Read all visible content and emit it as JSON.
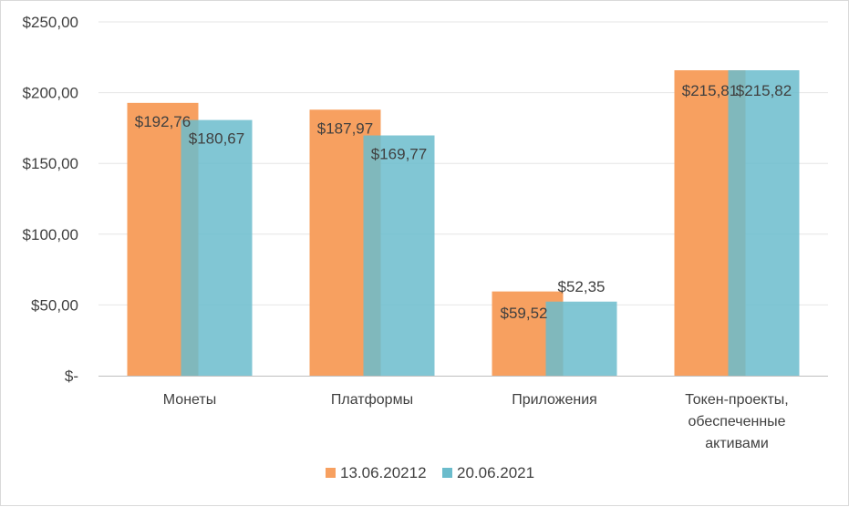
{
  "chart_data": {
    "type": "bar",
    "categories": [
      [
        "Монеты"
      ],
      [
        "Платформы"
      ],
      [
        "Приложения"
      ],
      [
        "Токен-проекты,",
        "обеспеченные",
        "активами"
      ]
    ],
    "series": [
      {
        "name": "13.06.20212",
        "color": "#f7a060",
        "values": [
          192.76,
          187.97,
          59.52,
          215.81
        ],
        "labels": [
          "$192,76",
          "$187,97",
          "$59,52",
          "$215,81"
        ]
      },
      {
        "name": "20.06.2021",
        "color": "#6bbccc",
        "values": [
          180.67,
          169.77,
          52.35,
          215.82
        ],
        "labels": [
          "$180,67",
          "$169,77",
          "$52,35",
          "$215,82"
        ]
      }
    ],
    "ylim": [
      0,
      250
    ],
    "yticks": [
      0,
      50,
      100,
      150,
      200,
      250
    ],
    "ytick_labels": [
      "$-",
      "$50,00",
      "$100,00",
      "$150,00",
      "$200,00",
      "$250,00"
    ],
    "grid": true,
    "legend": "bottom"
  }
}
